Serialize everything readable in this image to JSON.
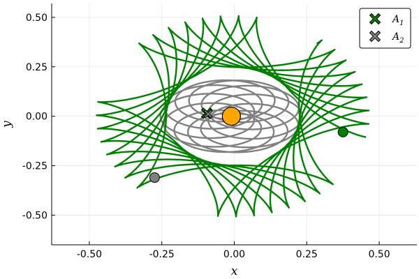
{
  "chart_data": {
    "type": "line",
    "xlabel": "x",
    "ylabel": "y",
    "xlim": [
      -0.63,
      0.63
    ],
    "ylim": [
      -0.65,
      0.57
    ],
    "grid": true,
    "legend_position": "top-right",
    "xticks": [
      -0.5,
      -0.25,
      0.0,
      0.25,
      0.5
    ],
    "xtick_labels": [
      "-0.50",
      "-0.25",
      "0.00",
      "0.25",
      "0.50"
    ],
    "yticks": [
      -0.5,
      -0.25,
      0.0,
      0.25,
      0.5
    ],
    "ytick_labels": [
      "-0.50",
      "-0.25",
      "0.00",
      "0.25",
      "0.50"
    ],
    "legend": [
      {
        "base": "A",
        "sub": "1",
        "color": "#008000",
        "marker": "x-cross"
      },
      {
        "base": "A",
        "sub": "2",
        "color": "#808080",
        "marker": "x-cross"
      }
    ],
    "central_body": {
      "x": -0.01,
      "y": 0.0,
      "color": "#FFA500"
    },
    "series": [
      {
        "color": "#008000",
        "trajectory": {
          "R": 0.47,
          "r": 0.12,
          "phase": -0.21,
          "turns": 8.0,
          "tmax_turns": 8.2
        },
        "current_position": {
          "x": 0.375,
          "y": -0.08
        },
        "start_position": {
          "x": -0.095,
          "y": 0.015
        }
      },
      {
        "color": "#808080",
        "trajectory": {
          "cx": -0.01,
          "cy": 0.0,
          "a": 0.16,
          "b": 0.1,
          "orbit_radius": 0.085,
          "precession_turns": 1.0,
          "loops": 11,
          "phase": 0.55
        },
        "current_position": {
          "x": -0.275,
          "y": -0.31
        },
        "start_position": {
          "x": -0.095,
          "y": 0.015
        }
      }
    ]
  }
}
